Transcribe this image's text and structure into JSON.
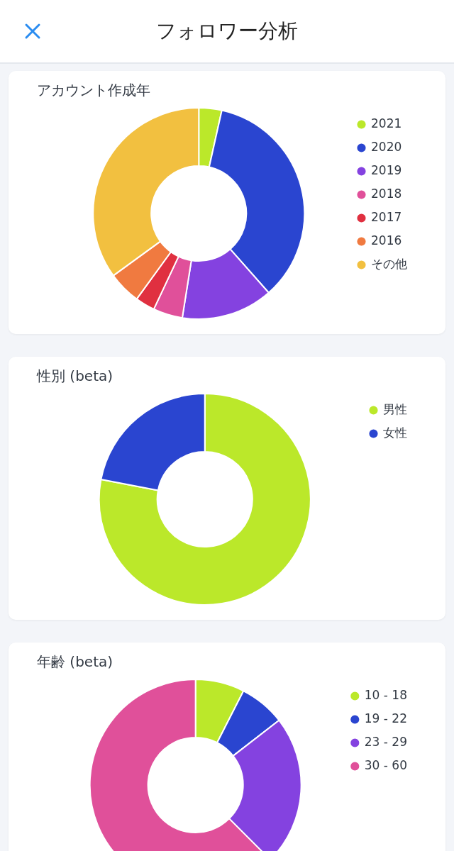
{
  "chart_data": [
    {
      "type": "other",
      "title": "フォロワー分析"
    },
    {
      "type": "donut",
      "title": "アカウント作成年",
      "categories": [
        "2021",
        "2020",
        "2019",
        "2018",
        "2017",
        "2016",
        "その他"
      ],
      "values": [
        3.5,
        35,
        14,
        4.5,
        3,
        5,
        35
      ],
      "colors": [
        "#bbe82a",
        "#2a45d0",
        "#8442e0",
        "#e0509a",
        "#e03040",
        "#f07a40",
        "#f2c040"
      ],
      "legend": "top right"
    },
    {
      "type": "donut",
      "title": "性別 (beta)",
      "categories": [
        "男性",
        "女性"
      ],
      "values": [
        78,
        22
      ],
      "colors": [
        "#bbe82a",
        "#2a45d0"
      ],
      "legend": "top right"
    },
    {
      "type": "donut",
      "title": "年齢 (beta)",
      "categories": [
        "10 - 18",
        "19 - 22",
        "23 - 29",
        "30 - 60"
      ],
      "values": [
        7.5,
        7,
        23,
        62.5
      ],
      "colors": [
        "#bbe82a",
        "#2a45d0",
        "#8442e0",
        "#e0509a"
      ],
      "legend": "top right"
    }
  ]
}
